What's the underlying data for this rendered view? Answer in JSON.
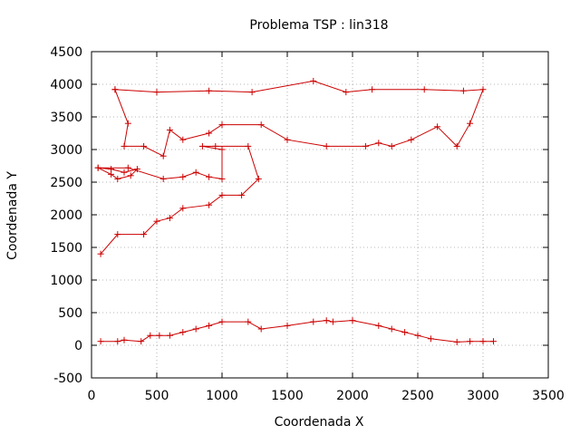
{
  "chart_data": {
    "type": "line",
    "title": "Problema TSP : lin318",
    "xlabel": "Coordenada X",
    "ylabel": "Coordenada Y",
    "xlim": [
      0,
      3500
    ],
    "ylim": [
      -500,
      4500
    ],
    "xticks": [
      0,
      500,
      1000,
      1500,
      2000,
      2500,
      3000,
      3500
    ],
    "yticks": [
      -500,
      0,
      500,
      1000,
      1500,
      2000,
      2500,
      3000,
      3500,
      4000,
      4500
    ],
    "grid": true,
    "marker": "+",
    "line_color": "#cc0000",
    "series": [
      {
        "x": [
          180,
          500,
          900,
          1230,
          1700,
          1950,
          2150,
          2550,
          2850,
          3000,
          2900,
          2800,
          2650,
          2450,
          2300,
          2200,
          2100,
          1800,
          1500,
          1300,
          1000,
          900,
          700,
          600,
          550,
          400,
          250,
          280,
          180
        ],
        "y": [
          3920,
          3880,
          3900,
          3880,
          4050,
          3880,
          3920,
          3920,
          3900,
          3920,
          3400,
          3050,
          3350,
          3150,
          3050,
          3100,
          3050,
          3050,
          3150,
          3380,
          3380,
          3250,
          3150,
          3300,
          2900,
          3050,
          3050,
          3400,
          3920
        ]
      },
      {
        "x": [
          50,
          150,
          250,
          350,
          300,
          200,
          150,
          50,
          280,
          550,
          700,
          800,
          900,
          1000,
          1000,
          850,
          950,
          1200,
          1280,
          1150,
          1000,
          900,
          700,
          600,
          500,
          400,
          200,
          70
        ],
        "y": [
          2720,
          2700,
          2650,
          2700,
          2600,
          2550,
          2620,
          2720,
          2720,
          2550,
          2580,
          2650,
          2580,
          2550,
          3000,
          3050,
          3050,
          3050,
          2550,
          2300,
          2300,
          2150,
          2100,
          1950,
          1900,
          1700,
          1700,
          1400
        ]
      },
      {
        "x": [
          70,
          200,
          250,
          380,
          450,
          520,
          600,
          700,
          800,
          900,
          1000,
          1200,
          1300,
          1500,
          1700,
          1800,
          1850,
          2000,
          2200,
          2300,
          2400,
          2500,
          2600,
          2800,
          2900,
          3000,
          3080
        ],
        "y": [
          60,
          60,
          80,
          60,
          150,
          150,
          150,
          200,
          250,
          300,
          360,
          360,
          250,
          300,
          360,
          380,
          360,
          380,
          300,
          250,
          200,
          150,
          100,
          50,
          60,
          60,
          60
        ]
      }
    ]
  }
}
